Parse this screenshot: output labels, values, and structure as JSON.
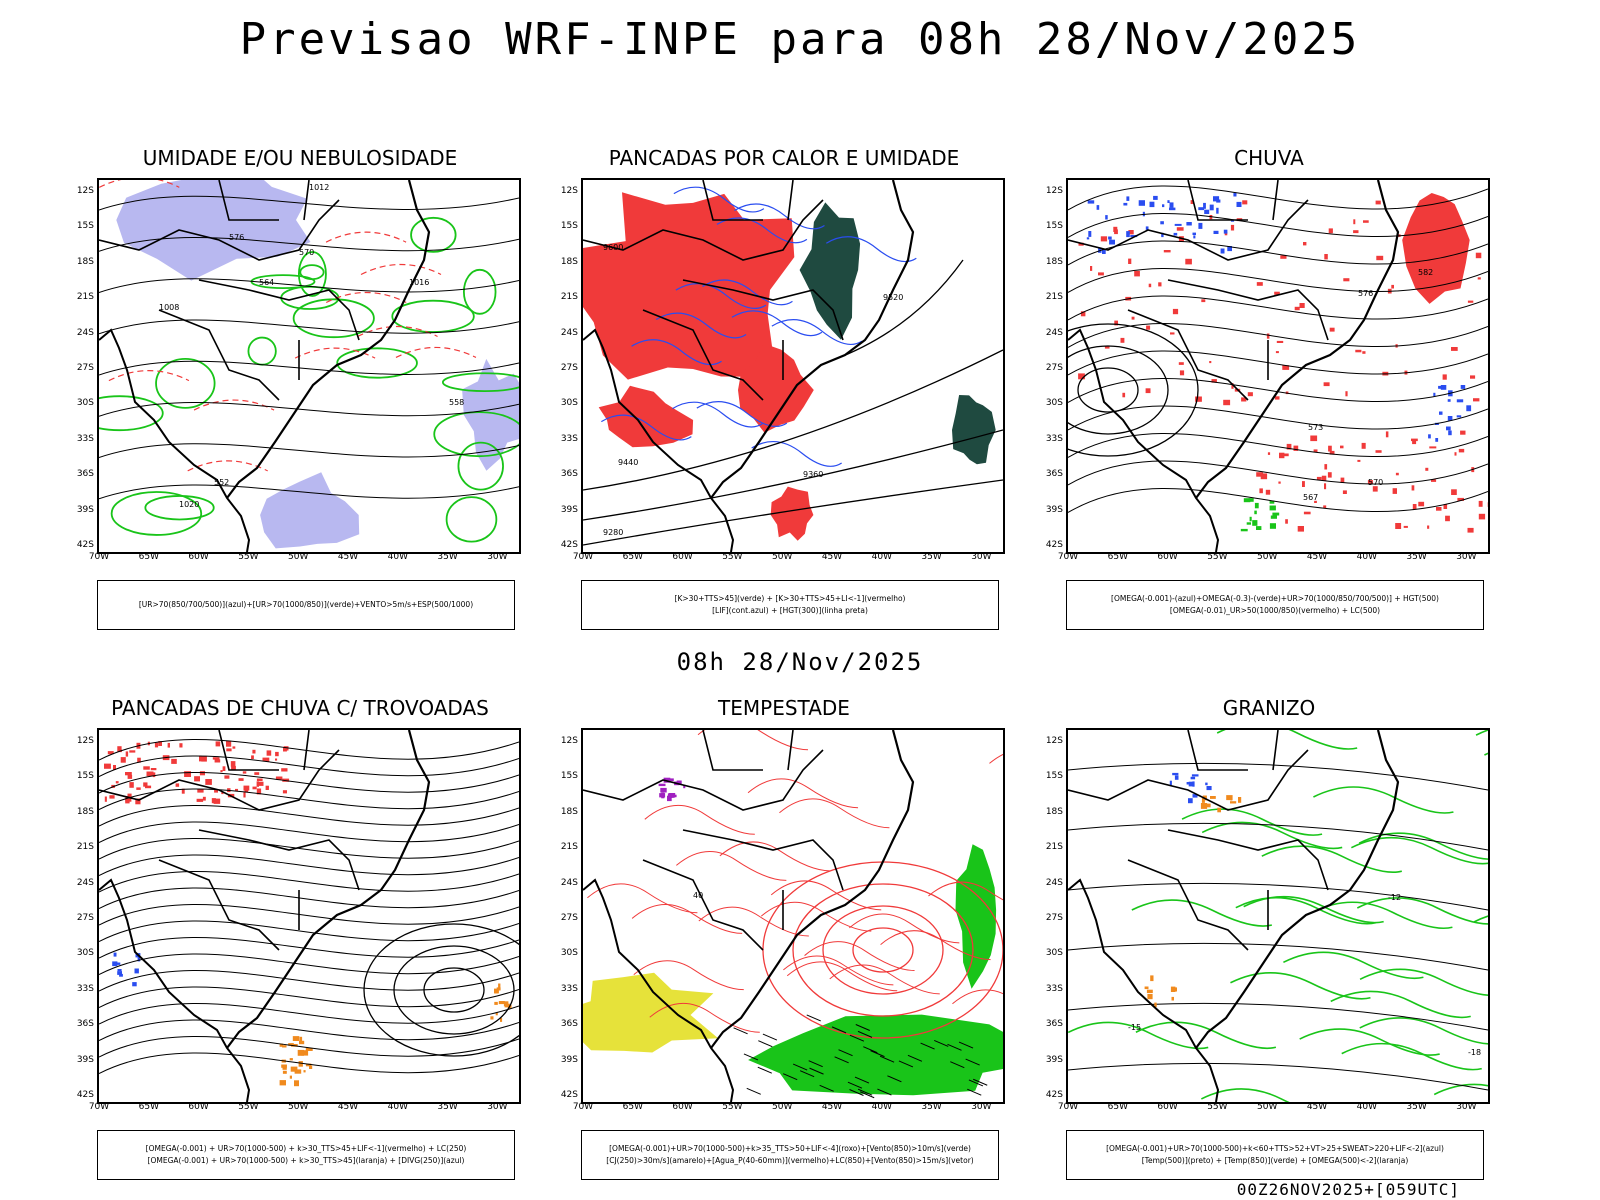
{
  "header": {
    "title": "Previsao WRF-INPE  para 08h 28/Nov/2025"
  },
  "mid_title": "08h 28/Nov/2025",
  "footer": "00Z26NOV2025+[059UTC]",
  "axes": {
    "lat_labels": [
      "12S",
      "15S",
      "18S",
      "21S",
      "24S",
      "27S",
      "30S",
      "33S",
      "36S",
      "39S",
      "42S"
    ],
    "lon_labels": [
      "70W",
      "65W",
      "60W",
      "55W",
      "50W",
      "45W",
      "40W",
      "35W",
      "30W"
    ]
  },
  "panels": [
    {
      "title": "UMIDADE E/OU NEBULOSIDADE",
      "legend": [
        "[UR>70(850/700/500)](azul)+[UR>70(1000/850)](verde)+VENTO>5m/s+ESP(500/1000)"
      ],
      "labels": [
        "1012",
        "1008",
        "1016",
        "1020",
        "576",
        "570",
        "564",
        "558",
        "552"
      ]
    },
    {
      "title": "PANCADAS POR CALOR E UMIDADE",
      "legend": [
        "[K>30+TTS>45](verde)  +  [K>30+TTS>45+LI<-1](vermelho)",
        "[LIF](cont.azul)  +  [HGT(300)](linha preta)"
      ],
      "labels": [
        "9600",
        "9520",
        "9440",
        "9360",
        "9280"
      ]
    },
    {
      "title": "CHUVA",
      "legend": [
        "[OMEGA(-0.001)-(azul)+OMEGA(-0.3)-(verde)+UR>70(1000/850/700/500)]  +  HGT(500)",
        "[OMEGA(-0.01)_UR>50(1000/850)(vermelho)  +  LC(500)"
      ],
      "labels": [
        "582",
        "576",
        "573",
        "570",
        "567"
      ]
    },
    {
      "title": "PANCADAS DE CHUVA C/ TROVOADAS",
      "legend": [
        "[OMEGA(-0.001)  +  UR>70(1000-500)  +  k>30_TTS>45+LIF<-1](vermelho)  +  LC(250)",
        "[OMEGA(-0.001)  +  UR>70(1000-500)  +  k>30_TTS>45](laranja)  +  [DIVG(250)](azul)"
      ],
      "labels": []
    },
    {
      "title": "TEMPESTADE",
      "legend": [
        "[OMEGA(-0.001)+UR>70(1000-500)+k>35_TTS>50+LIF<-4](roxo)+[Vento(850)>10m/s](verde)",
        "[CJ(250)>30m/s](amarelo)+[Agua_P(40-60mm)](vermelho)+LC(850)+[Vento(850)>15m/s](vetor)"
      ],
      "labels": [
        "40"
      ]
    },
    {
      "title": "GRANIZO",
      "legend": [
        "[OMEGA(-0.001)+UR>70(1000-500)+k<60+TTS>52+VT>25+SWEAT>220+LIF<-2](azul)",
        "[Temp(500)](preto)  +  [Temp(850)](verde)  +  [OMEGA(500)<-2](laranja)"
      ],
      "labels": [
        "-12",
        "-15",
        "-18"
      ]
    }
  ],
  "colors": {
    "red": "#f03a3a",
    "blue": "#2a4df0",
    "green": "#19c419",
    "lavender": "#b8b8f0",
    "darkgreen": "#1f4a40",
    "yellow": "#e6e23a",
    "orange": "#f08a1e",
    "purple": "#a020c0"
  }
}
